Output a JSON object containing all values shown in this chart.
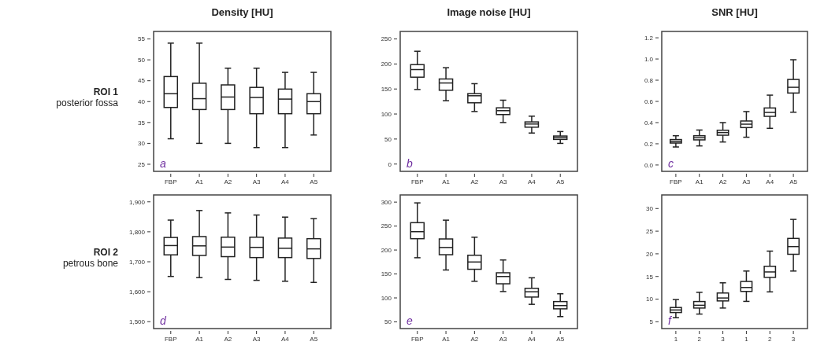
{
  "chart_data": [
    {
      "type": "box",
      "title": "Density [HU]",
      "categories": [
        "FBP",
        "A1",
        "A2",
        "A3",
        "A4",
        "A5"
      ],
      "ylim": [
        23.3,
        56.8
      ],
      "yticks": [
        25,
        30,
        35,
        40,
        45,
        50,
        55
      ],
      "annotations": [
        "ROI 1",
        "posterior fossa",
        "a"
      ],
      "boxes": [
        {
          "low": 31.1,
          "q1": 38.6,
          "median": 41.9,
          "q3": 46,
          "high": 54
        },
        {
          "low": 30,
          "q1": 38.1,
          "median": 40.7,
          "q3": 44.4,
          "high": 54
        },
        {
          "low": 30,
          "q1": 38.1,
          "median": 41.1,
          "q3": 44,
          "high": 48
        },
        {
          "low": 29,
          "q1": 37.1,
          "median": 41,
          "q3": 43.4,
          "high": 48
        },
        {
          "low": 29,
          "q1": 37.1,
          "median": 40.6,
          "q3": 43,
          "high": 47
        },
        {
          "low": 32,
          "q1": 37.1,
          "median": 40,
          "q3": 41.9,
          "high": 47
        }
      ]
    },
    {
      "type": "box",
      "title": "Image noise [HU]",
      "categories": [
        "FBP",
        "A1",
        "A2",
        "A3",
        "A4",
        "A5"
      ],
      "ylim": [
        -14.6,
        265
      ],
      "yticks": [
        0,
        50,
        100,
        150,
        200,
        250
      ],
      "annotations": [
        "b"
      ],
      "boxes": [
        {
          "low": 149,
          "q1": 173.6,
          "median": 188.8,
          "q3": 198.7,
          "high": 225.4
        },
        {
          "low": 126.6,
          "q1": 147.5,
          "median": 162,
          "q3": 170,
          "high": 192.5
        },
        {
          "low": 105,
          "q1": 122.4,
          "median": 136.5,
          "q3": 140.7,
          "high": 160.6
        },
        {
          "low": 83,
          "q1": 98.9,
          "median": 106.7,
          "q3": 112.4,
          "high": 127.6
        },
        {
          "low": 62,
          "q1": 73.7,
          "median": 80,
          "q3": 84.2,
          "high": 95.7
        },
        {
          "low": 41.3,
          "q1": 49.2,
          "median": 52.8,
          "q3": 56,
          "high": 64.9
        }
      ]
    },
    {
      "type": "box",
      "title": "SNR [HU]",
      "categories": [
        "FBP",
        "A1",
        "A2",
        "A3",
        "A4",
        "A5"
      ],
      "ylim": [
        -0.06,
        1.26
      ],
      "yticks": [
        {
          "value": 0,
          "label": "0.0"
        },
        {
          "value": 0.2,
          "label": "0.2"
        },
        {
          "value": 0.4,
          "label": "0.4"
        },
        {
          "value": 0.6,
          "label": "0.6"
        },
        {
          "value": 0.8,
          "label": "0.8"
        },
        {
          "value": 1,
          "label": "1.0"
        },
        {
          "value": 1.2,
          "label": "1.2"
        }
      ],
      "annotations": [
        "c"
      ],
      "boxes": [
        {
          "low": 0.17,
          "q1": 0.207,
          "median": 0.222,
          "q3": 0.24,
          "high": 0.276
        },
        {
          "low": 0.18,
          "q1": 0.237,
          "median": 0.257,
          "q3": 0.276,
          "high": 0.33
        },
        {
          "low": 0.217,
          "q1": 0.281,
          "median": 0.306,
          "q3": 0.328,
          "high": 0.4
        },
        {
          "low": 0.262,
          "q1": 0.353,
          "median": 0.385,
          "q3": 0.415,
          "high": 0.504
        },
        {
          "low": 0.346,
          "q1": 0.459,
          "median": 0.496,
          "q3": 0.538,
          "high": 0.659
        },
        {
          "low": 0.498,
          "q1": 0.679,
          "median": 0.733,
          "q3": 0.807,
          "high": 0.993
        }
      ]
    },
    {
      "type": "box",
      "categories": [
        "FBP",
        "A1",
        "A2",
        "A3",
        "A4",
        "A5"
      ],
      "ylim": [
        1477,
        1923
      ],
      "yticks": [
        {
          "value": 1500,
          "label": "1,500"
        },
        {
          "value": 1600,
          "label": "1,600"
        },
        {
          "value": 1700,
          "label": "1,700"
        },
        {
          "value": 1800,
          "label": "1,800"
        },
        {
          "value": 1900,
          "label": "1,900"
        }
      ],
      "annotations": [
        "ROI 2",
        "petrous bone",
        "d"
      ],
      "boxes": [
        {
          "low": 1651,
          "q1": 1723,
          "median": 1754,
          "q3": 1781,
          "high": 1839
        },
        {
          "low": 1647,
          "q1": 1721,
          "median": 1753,
          "q3": 1784,
          "high": 1871
        },
        {
          "low": 1641,
          "q1": 1717,
          "median": 1749,
          "q3": 1782,
          "high": 1863
        },
        {
          "low": 1638,
          "q1": 1714,
          "median": 1748,
          "q3": 1782,
          "high": 1856
        },
        {
          "low": 1635,
          "q1": 1714,
          "median": 1745,
          "q3": 1779,
          "high": 1849
        },
        {
          "low": 1631,
          "q1": 1711,
          "median": 1743,
          "q3": 1777,
          "high": 1844
        }
      ]
    },
    {
      "type": "box",
      "categories": [
        "FBP",
        "A1",
        "A2",
        "A3",
        "A4",
        "A5"
      ],
      "ylim": [
        36,
        315
      ],
      "yticks": [
        50,
        100,
        150,
        200,
        250,
        300
      ],
      "annotations": [
        "e"
      ],
      "boxes": [
        {
          "low": 183.9,
          "q1": 223.6,
          "median": 238.3,
          "q3": 257.1,
          "high": 298.4
        },
        {
          "low": 158.3,
          "q1": 190.2,
          "median": 205.3,
          "q3": 223.1,
          "high": 262.3
        },
        {
          "low": 134.7,
          "q1": 159.8,
          "median": 175,
          "q3": 189.1,
          "high": 226.8
        },
        {
          "low": 113.3,
          "q1": 129.5,
          "median": 144.7,
          "q3": 152.5,
          "high": 179.2
        },
        {
          "low": 86.6,
          "q1": 101.8,
          "median": 112.8,
          "q3": 120,
          "high": 142
        },
        {
          "low": 61,
          "q1": 77.2,
          "median": 84,
          "q3": 92.4,
          "high": 108.6
        }
      ]
    },
    {
      "type": "box",
      "categories": [
        "1",
        "2",
        "3",
        "1",
        "2",
        "3"
      ],
      "ylim": [
        3.5,
        33
      ],
      "yticks": [
        5,
        10,
        15,
        20,
        25,
        30
      ],
      "annotations": [
        "f"
      ],
      "boxes": [
        {
          "low": 5.9,
          "q1": 7.04,
          "median": 7.6,
          "q3": 8.15,
          "high": 9.9
        },
        {
          "low": 6.7,
          "q1": 8.03,
          "median": 8.64,
          "q3": 9.47,
          "high": 11.5
        },
        {
          "low": 8.03,
          "q1": 9.6,
          "median": 10.25,
          "q3": 11.35,
          "high": 13.6
        },
        {
          "low": 9.5,
          "q1": 11.7,
          "median": 12.57,
          "q3": 13.9,
          "high": 16.2
        },
        {
          "low": 11.6,
          "q1": 14.8,
          "median": 16,
          "q3": 17.25,
          "high": 20.6
        },
        {
          "low": 16.2,
          "q1": 19.9,
          "median": 21.6,
          "q3": 23.4,
          "high": 27.6
        }
      ]
    }
  ]
}
